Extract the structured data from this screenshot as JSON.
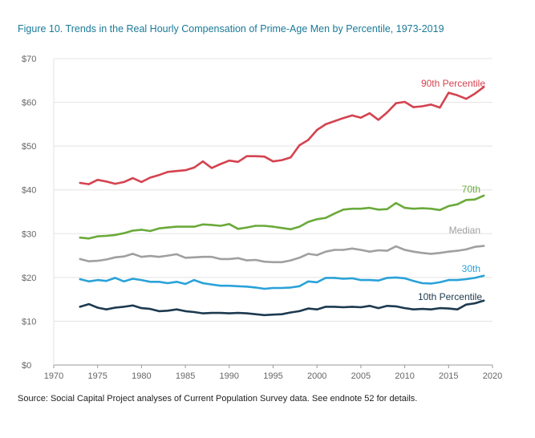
{
  "chart_data": {
    "type": "line",
    "title": "Figure 10. Trends in the Real Hourly Compensation of Prime-Age Men by Percentile, 1973-2019",
    "source": "Source: Social Capital Project analyses of Current Population Survey data. See endnote 52 for details.",
    "xlabel": "",
    "ylabel": "",
    "xlim": [
      1970,
      2020
    ],
    "ylim": [
      0,
      70
    ],
    "grid": true,
    "legend": "inline labels at line ends",
    "x_ticks": [
      1970,
      1975,
      1980,
      1985,
      1990,
      1995,
      2000,
      2005,
      2010,
      2015,
      2020
    ],
    "y_ticks": [
      {
        "value": 0,
        "label": "$0"
      },
      {
        "value": 10,
        "label": "$10"
      },
      {
        "value": 20,
        "label": "$20"
      },
      {
        "value": 30,
        "label": "$30"
      },
      {
        "value": 40,
        "label": "$40"
      },
      {
        "value": 50,
        "label": "$50"
      },
      {
        "value": 60,
        "label": "$60"
      },
      {
        "value": 70,
        "label": "$70"
      }
    ],
    "x": [
      1973,
      1974,
      1975,
      1976,
      1977,
      1978,
      1979,
      1980,
      1981,
      1982,
      1983,
      1984,
      1985,
      1986,
      1987,
      1988,
      1989,
      1990,
      1991,
      1992,
      1993,
      1994,
      1995,
      1996,
      1997,
      1998,
      1999,
      2000,
      2001,
      2002,
      2003,
      2004,
      2005,
      2006,
      2007,
      2008,
      2009,
      2010,
      2011,
      2012,
      2013,
      2014,
      2015,
      2016,
      2017,
      2018,
      2019
    ],
    "series": [
      {
        "name": "90th Percentile",
        "color": "#d4434f",
        "values": [
          41.6,
          41.3,
          42.3,
          41.9,
          41.4,
          41.8,
          42.7,
          41.8,
          42.8,
          43.4,
          44.1,
          44.3,
          44.5,
          45.1,
          46.5,
          45.0,
          45.9,
          46.7,
          46.4,
          47.7,
          47.7,
          47.6,
          46.5,
          46.8,
          47.4,
          50.2,
          51.4,
          53.7,
          55.0,
          55.7,
          56.4,
          57.0,
          56.5,
          57.5,
          56.0,
          57.7,
          59.8,
          60.1,
          58.9,
          59.1,
          59.5,
          58.8,
          62.2,
          61.6,
          60.8,
          62.0,
          63.5
        ]
      },
      {
        "name": "70th",
        "color": "#6aaa3a",
        "values": [
          29.1,
          28.9,
          29.4,
          29.5,
          29.7,
          30.1,
          30.7,
          30.9,
          30.6,
          31.2,
          31.4,
          31.6,
          31.6,
          31.6,
          32.1,
          32.0,
          31.8,
          32.2,
          31.1,
          31.4,
          31.8,
          31.8,
          31.6,
          31.3,
          31.0,
          31.6,
          32.7,
          33.3,
          33.6,
          34.6,
          35.5,
          35.7,
          35.7,
          35.9,
          35.5,
          35.6,
          37.0,
          35.9,
          35.7,
          35.8,
          35.7,
          35.4,
          36.3,
          36.7,
          37.7,
          37.8,
          38.7
        ]
      },
      {
        "name": "Median",
        "color": "#a0a0a0",
        "values": [
          24.2,
          23.7,
          23.8,
          24.1,
          24.6,
          24.8,
          25.4,
          24.7,
          24.9,
          24.7,
          25.0,
          25.3,
          24.5,
          24.6,
          24.7,
          24.7,
          24.2,
          24.2,
          24.4,
          23.9,
          24.0,
          23.6,
          23.5,
          23.5,
          23.9,
          24.5,
          25.4,
          25.1,
          25.9,
          26.3,
          26.3,
          26.6,
          26.3,
          25.9,
          26.2,
          26.1,
          27.1,
          26.3,
          25.9,
          25.6,
          25.4,
          25.6,
          25.9,
          26.1,
          26.4,
          27.0,
          27.2
        ]
      },
      {
        "name": "30th",
        "color": "#2aa2d8",
        "values": [
          19.6,
          19.1,
          19.4,
          19.2,
          19.9,
          19.1,
          19.7,
          19.4,
          19.0,
          19.0,
          18.7,
          19.0,
          18.5,
          19.4,
          18.7,
          18.4,
          18.1,
          18.1,
          18.0,
          17.9,
          17.7,
          17.4,
          17.6,
          17.6,
          17.7,
          18.0,
          19.1,
          18.9,
          19.9,
          19.9,
          19.7,
          19.8,
          19.4,
          19.4,
          19.3,
          19.9,
          20.0,
          19.8,
          19.2,
          18.7,
          18.6,
          18.9,
          19.4,
          19.4,
          19.6,
          19.9,
          20.4
        ]
      },
      {
        "name": "10th Percentile",
        "color": "#1d3a4f",
        "values": [
          13.3,
          13.9,
          13.1,
          12.7,
          13.1,
          13.3,
          13.6,
          13.0,
          12.8,
          12.3,
          12.4,
          12.7,
          12.3,
          12.1,
          11.8,
          11.9,
          11.9,
          11.8,
          11.9,
          11.8,
          11.6,
          11.4,
          11.5,
          11.6,
          12.0,
          12.3,
          12.9,
          12.7,
          13.3,
          13.3,
          13.2,
          13.3,
          13.2,
          13.5,
          13.0,
          13.5,
          13.4,
          13.0,
          12.7,
          12.8,
          12.7,
          13.0,
          12.9,
          12.7,
          13.8,
          14.1,
          14.7
        ]
      }
    ]
  }
}
